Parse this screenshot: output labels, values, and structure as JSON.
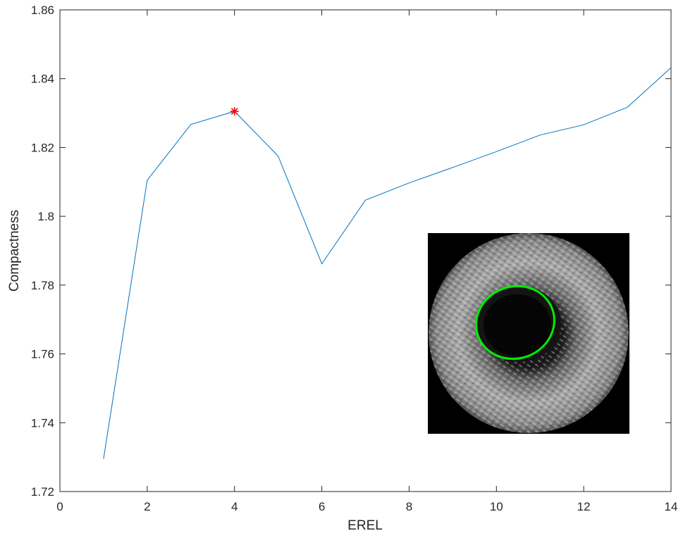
{
  "chart_data": {
    "type": "line",
    "title": "",
    "xlabel": "EREL",
    "ylabel": "Compactness",
    "xlim": [
      0,
      14
    ],
    "ylim": [
      1.72,
      1.86
    ],
    "x_ticks": [
      0,
      2,
      4,
      6,
      8,
      10,
      12,
      14
    ],
    "y_ticks": [
      1.72,
      1.74,
      1.76,
      1.78,
      1.8,
      1.82,
      1.84,
      1.86
    ],
    "x_tick_labels": [
      "0",
      "2",
      "4",
      "6",
      "8",
      "10",
      "12",
      "14"
    ],
    "y_tick_labels": [
      "1.72",
      "1.74",
      "1.76",
      "1.78",
      "1.8",
      "1.82",
      "1.84",
      "1.86"
    ],
    "grid": false,
    "box": true,
    "series": [
      {
        "color": "#0072bd",
        "x": [
          1,
          2,
          3,
          4,
          5,
          6,
          7,
          8,
          9,
          10,
          11,
          12,
          13,
          14
        ],
        "y": [
          1.7295,
          1.8105,
          1.8267,
          1.8305,
          1.8175,
          1.7862,
          1.8047,
          1.8097,
          1.8142,
          1.8188,
          1.8236,
          1.8266,
          1.8317,
          1.8432
        ]
      }
    ],
    "marker": {
      "x": 4,
      "y": 1.8305,
      "symbol": "asterisk",
      "color": "#ff0000"
    },
    "inset_image": {
      "description_icon": "ultrasound-cross-section-image",
      "background": "#000000",
      "contour_color": "#00ee00"
    }
  }
}
